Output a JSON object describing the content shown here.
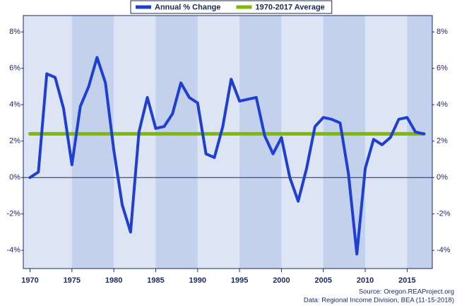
{
  "chart_data": {
    "type": "line",
    "x": [
      1970,
      1971,
      1972,
      1973,
      1974,
      1975,
      1976,
      1977,
      1978,
      1979,
      1980,
      1981,
      1982,
      1983,
      1984,
      1985,
      1986,
      1987,
      1988,
      1989,
      1990,
      1991,
      1992,
      1993,
      1994,
      1995,
      1996,
      1997,
      1998,
      1999,
      2000,
      2001,
      2002,
      2003,
      2004,
      2005,
      2006,
      2007,
      2008,
      2009,
      2010,
      2011,
      2012,
      2013,
      2014,
      2015,
      2016,
      2017
    ],
    "series": [
      {
        "name": "Annual % Change",
        "color": "#1f3fd0",
        "values": [
          0.0,
          0.3,
          5.7,
          5.5,
          3.8,
          0.7,
          3.9,
          5.0,
          6.6,
          5.2,
          1.5,
          -1.5,
          -3.0,
          2.5,
          4.4,
          2.7,
          2.8,
          3.5,
          5.2,
          4.4,
          4.1,
          1.3,
          1.1,
          2.8,
          5.4,
          4.2,
          4.3,
          4.4,
          2.3,
          1.3,
          2.2,
          0.0,
          -1.3,
          0.5,
          2.8,
          3.3,
          3.2,
          3.0,
          0.2,
          -4.2,
          0.5,
          2.1,
          1.8,
          2.2,
          3.2,
          3.3,
          2.5,
          2.4
        ]
      },
      {
        "name": "1970-2017 Average",
        "color": "#7fba00",
        "x": [
          1970,
          2017
        ],
        "values": [
          2.4,
          2.4
        ]
      }
    ],
    "xlim": [
      1969.2,
      2018
    ],
    "xticks": [
      1970,
      1975,
      1980,
      1985,
      1990,
      1995,
      2000,
      2005,
      2010,
      2015
    ],
    "ylim": [
      -5,
      8.9
    ],
    "yticks": [
      {
        "value": -4,
        "label": "-4%"
      },
      {
        "value": -2,
        "label": "-2%"
      },
      {
        "value": 0,
        "label": "0%"
      },
      {
        "value": 2,
        "label": "2%"
      },
      {
        "value": 4,
        "label": "4%"
      },
      {
        "value": 6,
        "label": "6%"
      },
      {
        "value": 8,
        "label": "8%"
      }
    ],
    "notes": [
      "Source: Oregon.REAProject.org",
      "Data: Regional Income Division, BEA (11-15-2018)"
    ]
  }
}
